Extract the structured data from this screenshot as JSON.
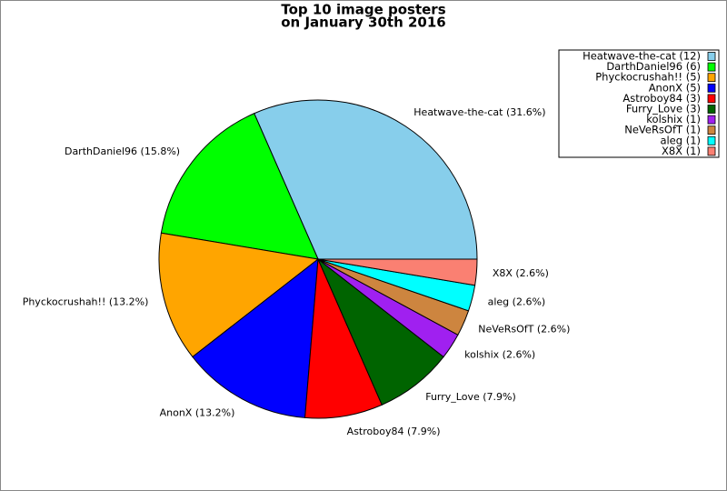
{
  "chart_data": {
    "type": "pie",
    "title": [
      "Top 10 image posters",
      "on January 30th 2016"
    ],
    "values": [
      12,
      6,
      5,
      5,
      3,
      3,
      1,
      1,
      1,
      1
    ],
    "slice_labels": [
      "Heatwave-the-cat (31.6%)",
      "DarthDaniel96 (15.8%)",
      "Phyckocrushah!! (13.2%)",
      "AnonX (13.2%)",
      "Astroboy84 (7.9%)",
      "Furry_Love (7.9%)",
      "kolshix (2.6%)",
      "NeVeRsOfT (2.6%)",
      "aleg (2.6%)",
      "X8X (2.6%)"
    ],
    "legend_labels": [
      "Heatwave-the-cat (12)",
      "DarthDaniel96 (6)",
      "Phyckocrushah!! (5)",
      "AnonX (5)",
      "Astroboy84 (3)",
      "Furry_Love (3)",
      "kolshix (1)",
      "NeVeRsOfT (1)",
      "aleg (1)",
      "X8X (1)"
    ],
    "colors": [
      "#87ceeb",
      "#00ff00",
      "#ffa500",
      "#0000ff",
      "#ff0000",
      "#006400",
      "#a020f0",
      "#cd853f",
      "#00ffff",
      "#fa8072"
    ],
    "legend": "upper right"
  }
}
